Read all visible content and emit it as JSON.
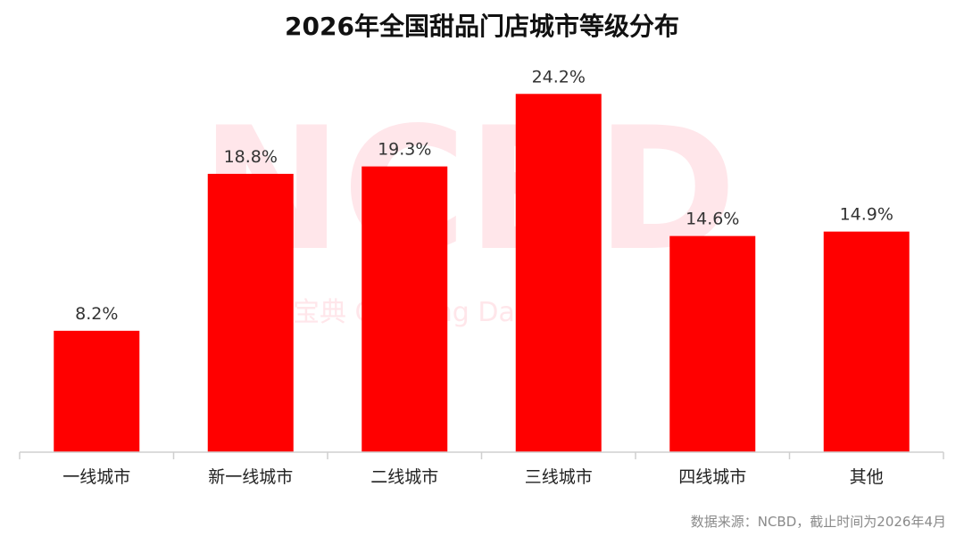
{
  "chart_data": {
    "type": "bar",
    "title": "2026年全国甜品门店城市等级分布",
    "categories": [
      "一线城市",
      "新一线城市",
      "二线城市",
      "三线城市",
      "四线城市",
      "其他"
    ],
    "values": [
      8.2,
      18.8,
      19.3,
      24.2,
      14.6,
      14.9
    ],
    "value_labels": [
      "8.2%",
      "18.8%",
      "19.3%",
      "24.2%",
      "14.6%",
      "14.9%"
    ],
    "unit": "%",
    "xlabel": "",
    "ylabel": "",
    "ylim": [
      0,
      25
    ],
    "grid": false,
    "legend": "none",
    "bar_color": "#ff0000",
    "source": "数据来源：NCBD，截止时间为2026年4月"
  },
  "watermark": {
    "logo": "NCBD",
    "text": "宝典 Catering Da",
    "color": "#ffe6ea"
  }
}
